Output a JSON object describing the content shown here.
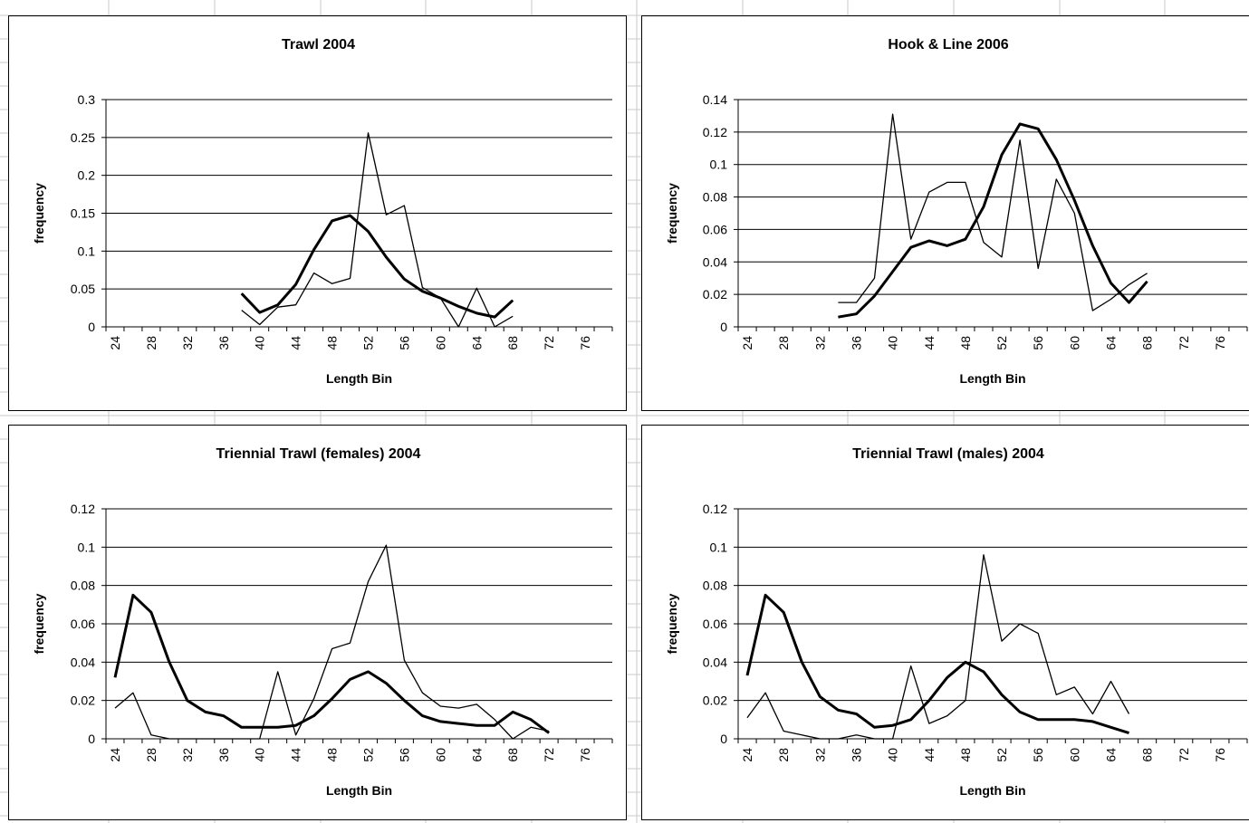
{
  "colors": {
    "background": "#ffffff",
    "gridline": "#000000",
    "line": "#000000",
    "sheet_grid": "#c8c8c8"
  },
  "chart_data": [
    {
      "type": "line",
      "title": "Trawl 2004",
      "xlabel": "Length Bin",
      "ylabel": "frequency",
      "categories": [
        "24",
        "26",
        "28",
        "30",
        "32",
        "34",
        "36",
        "38",
        "40",
        "42",
        "44",
        "46",
        "48",
        "50",
        "52",
        "54",
        "56",
        "58",
        "60",
        "62",
        "64",
        "66",
        "68",
        "70",
        "72",
        "74",
        "76",
        "78"
      ],
      "x_tick_labels": [
        "24",
        "28",
        "32",
        "36",
        "40",
        "44",
        "48",
        "52",
        "56",
        "60",
        "64",
        "68",
        "72",
        "76"
      ],
      "y_ticks": [
        "0",
        "0.05",
        "0.1",
        "0.15",
        "0.2",
        "0.25",
        "0.3"
      ],
      "ylim": [
        0,
        0.3
      ],
      "grid": true,
      "series": [
        {
          "style": "thick",
          "values": [
            null,
            null,
            null,
            null,
            null,
            null,
            null,
            0.044,
            0.019,
            0.029,
            0.056,
            0.102,
            0.14,
            0.147,
            0.126,
            0.092,
            0.063,
            0.047,
            0.038,
            0.027,
            0.018,
            0.013,
            0.035,
            null,
            null,
            null,
            null,
            null
          ]
        },
        {
          "style": "thin",
          "values": [
            null,
            null,
            null,
            null,
            null,
            null,
            null,
            0.022,
            0.003,
            0.026,
            0.029,
            0.071,
            0.057,
            0.064,
            0.256,
            0.148,
            0.16,
            0.052,
            0.038,
            0.0,
            0.051,
            0.0,
            0.014,
            null,
            null,
            null,
            null,
            null
          ]
        }
      ]
    },
    {
      "type": "line",
      "title": "Hook & Line 2006",
      "xlabel": "Length Bin",
      "ylabel": "frequency",
      "categories": [
        "24",
        "26",
        "28",
        "30",
        "32",
        "34",
        "36",
        "38",
        "40",
        "42",
        "44",
        "46",
        "48",
        "50",
        "52",
        "54",
        "56",
        "58",
        "60",
        "62",
        "64",
        "66",
        "68",
        "70",
        "72",
        "74",
        "76",
        "78"
      ],
      "x_tick_labels": [
        "24",
        "28",
        "32",
        "36",
        "40",
        "44",
        "48",
        "52",
        "56",
        "60",
        "64",
        "68",
        "72",
        "76"
      ],
      "y_ticks": [
        "0",
        "0.02",
        "0.04",
        "0.06",
        "0.08",
        "0.1",
        "0.12",
        "0.14"
      ],
      "ylim": [
        0,
        0.14
      ],
      "grid": true,
      "series": [
        {
          "style": "thick",
          "values": [
            null,
            null,
            null,
            null,
            null,
            0.006,
            0.008,
            0.019,
            0.034,
            0.049,
            0.053,
            0.05,
            0.054,
            0.074,
            0.106,
            0.125,
            0.122,
            0.103,
            0.078,
            0.05,
            0.027,
            0.015,
            0.028,
            null,
            null,
            null,
            null,
            null
          ]
        },
        {
          "style": "thin",
          "values": [
            null,
            null,
            null,
            null,
            null,
            0.015,
            0.015,
            0.03,
            0.131,
            0.054,
            0.083,
            0.089,
            0.089,
            0.052,
            0.043,
            0.115,
            0.036,
            0.091,
            0.07,
            0.01,
            0.017,
            0.026,
            0.033,
            null,
            null,
            null,
            null,
            null
          ]
        }
      ]
    },
    {
      "type": "line",
      "title": "Triennial Trawl (females) 2004",
      "xlabel": "Length Bin",
      "ylabel": "frequency",
      "categories": [
        "24",
        "26",
        "28",
        "30",
        "32",
        "34",
        "36",
        "38",
        "40",
        "42",
        "44",
        "46",
        "48",
        "50",
        "52",
        "54",
        "56",
        "58",
        "60",
        "62",
        "64",
        "66",
        "68",
        "70",
        "72",
        "74",
        "76",
        "78"
      ],
      "x_tick_labels": [
        "24",
        "28",
        "32",
        "36",
        "40",
        "44",
        "48",
        "52",
        "56",
        "60",
        "64",
        "68",
        "72",
        "76"
      ],
      "y_ticks": [
        "0",
        "0.02",
        "0.04",
        "0.06",
        "0.08",
        "0.1",
        "0.12"
      ],
      "ylim": [
        0,
        0.12
      ],
      "grid": true,
      "series": [
        {
          "style": "thick",
          "values": [
            0.032,
            0.075,
            0.066,
            0.04,
            0.02,
            0.014,
            0.012,
            0.006,
            0.006,
            0.006,
            0.007,
            0.012,
            0.021,
            0.031,
            0.035,
            0.029,
            0.02,
            0.012,
            0.009,
            0.008,
            0.007,
            0.007,
            0.014,
            0.01,
            0.003,
            null,
            null,
            null
          ]
        },
        {
          "style": "thin",
          "values": [
            0.016,
            0.024,
            0.002,
            0.0,
            0.0,
            0.0,
            0.0,
            0.0,
            0.0,
            0.035,
            0.002,
            0.021,
            0.047,
            0.05,
            0.082,
            0.101,
            0.041,
            0.024,
            0.017,
            0.016,
            0.018,
            0.01,
            0.0,
            0.006,
            0.004,
            null,
            null,
            null
          ]
        }
      ]
    },
    {
      "type": "line",
      "title": "Triennial Trawl (males) 2004",
      "xlabel": "Length Bin",
      "ylabel": "frequency",
      "categories": [
        "24",
        "26",
        "28",
        "30",
        "32",
        "34",
        "36",
        "38",
        "40",
        "42",
        "44",
        "46",
        "48",
        "50",
        "52",
        "54",
        "56",
        "58",
        "60",
        "62",
        "64",
        "66",
        "68",
        "70",
        "72",
        "74",
        "76",
        "78"
      ],
      "x_tick_labels": [
        "24",
        "28",
        "32",
        "36",
        "40",
        "44",
        "48",
        "52",
        "56",
        "60",
        "64",
        "68",
        "72",
        "76"
      ],
      "y_ticks": [
        "0",
        "0.02",
        "0.04",
        "0.06",
        "0.08",
        "0.1",
        "0.12"
      ],
      "ylim": [
        0,
        0.12
      ],
      "grid": true,
      "series": [
        {
          "style": "thick",
          "values": [
            0.033,
            0.075,
            0.066,
            0.04,
            0.022,
            0.015,
            0.013,
            0.006,
            0.007,
            0.01,
            0.02,
            0.032,
            0.04,
            0.035,
            0.023,
            0.014,
            0.01,
            0.01,
            0.01,
            0.009,
            0.006,
            0.003,
            null,
            null,
            null,
            null,
            null,
            null
          ]
        },
        {
          "style": "thin",
          "values": [
            0.011,
            0.024,
            0.004,
            0.002,
            0.0,
            0.0,
            0.002,
            0.0,
            0.0,
            0.038,
            0.008,
            0.012,
            0.02,
            0.096,
            0.051,
            0.06,
            0.055,
            0.023,
            0.027,
            0.013,
            0.03,
            0.013,
            null,
            null,
            null,
            null,
            null,
            null
          ]
        }
      ]
    }
  ]
}
